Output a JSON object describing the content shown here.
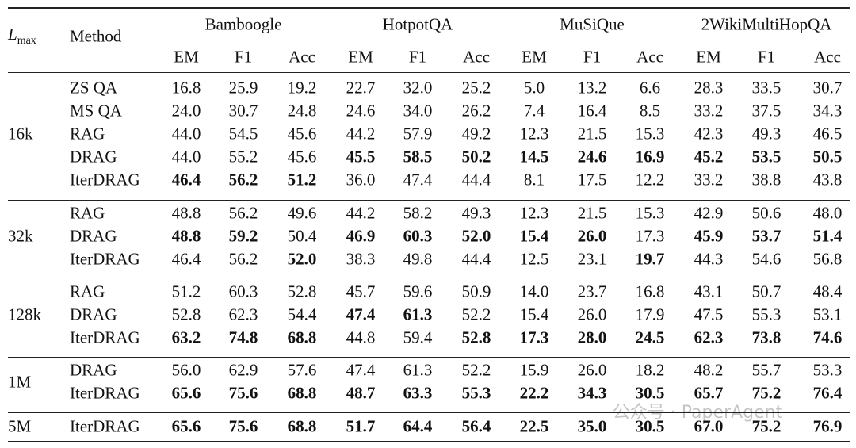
{
  "table": {
    "lmax_header": {
      "symbol": "L",
      "subscript": "max"
    },
    "method_header": "Method",
    "datasets": [
      "Bamboogle",
      "HotpotQA",
      "MuSiQue",
      "2WikiMultiHopQA"
    ],
    "metrics": [
      "EM",
      "F1",
      "Acc"
    ],
    "groups": [
      {
        "label": "16k",
        "rows": [
          {
            "method": "ZS QA",
            "values": [
              "16.8",
              "25.9",
              "19.2",
              "22.7",
              "32.0",
              "25.2",
              "5.0",
              "13.2",
              "6.6",
              "28.3",
              "33.5",
              "30.7"
            ],
            "bold": []
          },
          {
            "method": "MS QA",
            "values": [
              "24.0",
              "30.7",
              "24.8",
              "24.6",
              "34.0",
              "26.2",
              "7.4",
              "16.4",
              "8.5",
              "33.2",
              "37.5",
              "34.3"
            ],
            "bold": []
          },
          {
            "method": "RAG",
            "values": [
              "44.0",
              "54.5",
              "45.6",
              "44.2",
              "57.9",
              "49.2",
              "12.3",
              "21.5",
              "15.3",
              "42.3",
              "49.3",
              "46.5"
            ],
            "bold": []
          },
          {
            "method": "DRAG",
            "values": [
              "44.0",
              "55.2",
              "45.6",
              "45.5",
              "58.5",
              "50.2",
              "14.5",
              "24.6",
              "16.9",
              "45.2",
              "53.5",
              "50.5"
            ],
            "bold": [
              3,
              4,
              5,
              6,
              7,
              8,
              9,
              10,
              11
            ]
          },
          {
            "method": "IterDRAG",
            "values": [
              "46.4",
              "56.2",
              "51.2",
              "36.0",
              "47.4",
              "44.4",
              "8.1",
              "17.5",
              "12.2",
              "33.2",
              "38.8",
              "43.8"
            ],
            "bold": [
              0,
              1,
              2
            ]
          }
        ]
      },
      {
        "label": "32k",
        "rows": [
          {
            "method": "RAG",
            "values": [
              "48.8",
              "56.2",
              "49.6",
              "44.2",
              "58.2",
              "49.3",
              "12.3",
              "21.5",
              "15.3",
              "42.9",
              "50.6",
              "48.0"
            ],
            "bold": []
          },
          {
            "method": "DRAG",
            "values": [
              "48.8",
              "59.2",
              "50.4",
              "46.9",
              "60.3",
              "52.0",
              "15.4",
              "26.0",
              "17.3",
              "45.9",
              "53.7",
              "51.4"
            ],
            "bold": [
              0,
              1,
              3,
              4,
              5,
              6,
              7,
              9,
              10,
              11
            ]
          },
          {
            "method": "IterDRAG",
            "values": [
              "46.4",
              "56.2",
              "52.0",
              "38.3",
              "49.8",
              "44.4",
              "12.5",
              "23.1",
              "19.7",
              "44.3",
              "54.6",
              "56.8"
            ],
            "bold": [
              2,
              8
            ]
          }
        ]
      },
      {
        "label": "128k",
        "rows": [
          {
            "method": "RAG",
            "values": [
              "51.2",
              "60.3",
              "52.8",
              "45.7",
              "59.6",
              "50.9",
              "14.0",
              "23.7",
              "16.8",
              "43.1",
              "50.7",
              "48.4"
            ],
            "bold": []
          },
          {
            "method": "DRAG",
            "values": [
              "52.8",
              "62.3",
              "54.4",
              "47.4",
              "61.3",
              "52.2",
              "15.4",
              "26.0",
              "17.9",
              "47.5",
              "55.3",
              "53.1"
            ],
            "bold": [
              3,
              4
            ]
          },
          {
            "method": "IterDRAG",
            "values": [
              "63.2",
              "74.8",
              "68.8",
              "44.8",
              "59.4",
              "52.8",
              "17.3",
              "28.0",
              "24.5",
              "62.3",
              "73.8",
              "74.6"
            ],
            "bold": [
              0,
              1,
              2,
              5,
              6,
              7,
              8,
              9,
              10,
              11
            ]
          }
        ]
      },
      {
        "label": "1M",
        "rows": [
          {
            "method": "DRAG",
            "values": [
              "56.0",
              "62.9",
              "57.6",
              "47.4",
              "61.3",
              "52.2",
              "15.9",
              "26.0",
              "18.2",
              "48.2",
              "55.7",
              "53.3"
            ],
            "bold": []
          },
          {
            "method": "IterDRAG",
            "values": [
              "65.6",
              "75.6",
              "68.8",
              "48.7",
              "63.3",
              "55.3",
              "22.2",
              "34.3",
              "30.5",
              "65.7",
              "75.2",
              "76.4"
            ],
            "bold": [
              0,
              1,
              2,
              3,
              4,
              5,
              6,
              7,
              8,
              9,
              10,
              11
            ]
          }
        ]
      },
      {
        "label": "5M",
        "rows": [
          {
            "method": "IterDRAG",
            "values": [
              "65.6",
              "75.6",
              "68.8",
              "51.7",
              "64.4",
              "56.4",
              "22.5",
              "35.0",
              "30.5",
              "67.0",
              "75.2",
              "76.9"
            ],
            "bold": [
              0,
              1,
              2,
              3,
              4,
              5,
              6,
              7,
              8,
              9,
              10,
              11
            ]
          }
        ]
      }
    ],
    "watermark": "公众号 · PaperAgent"
  }
}
